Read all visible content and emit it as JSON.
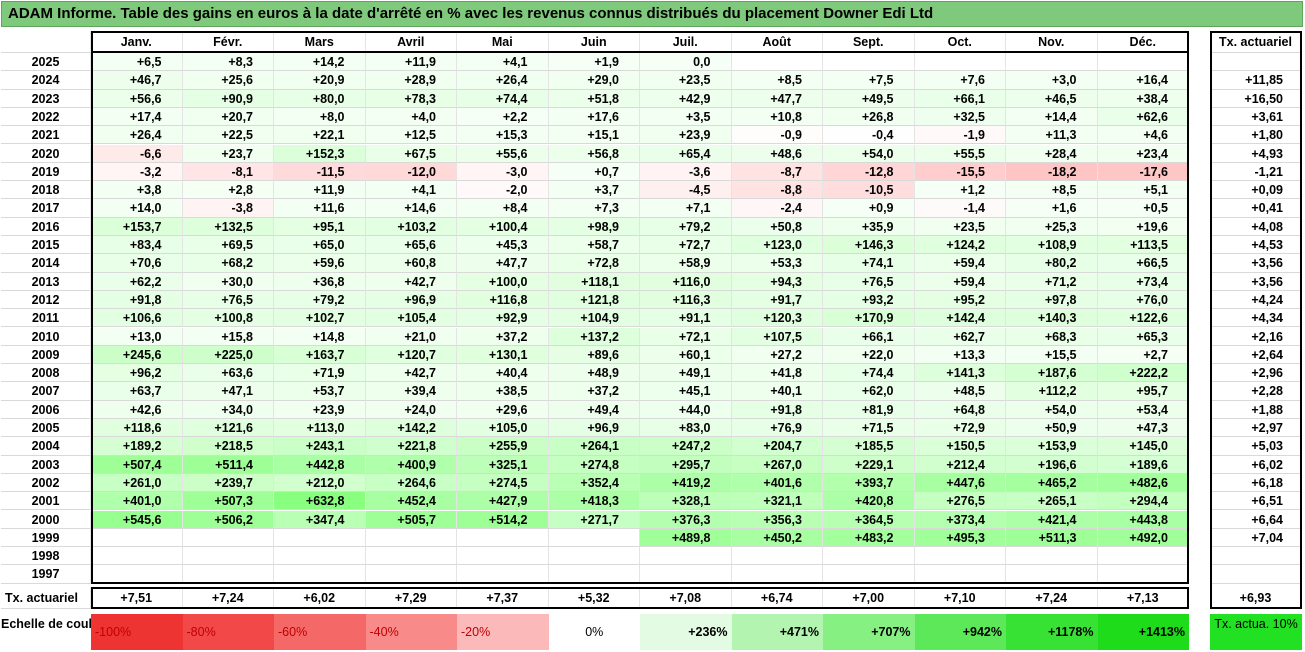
{
  "title": "ADAM Informe. Table des gains en euros à la date d'arrêté en % avec les revenus connus distribués du placement Downer Edi Ltd",
  "months": [
    "Janv.",
    "Févr.",
    "Mars",
    "Avril",
    "Mai",
    "Juin",
    "Juil.",
    "Août",
    "Sept.",
    "Oct.",
    "Nov.",
    "Déc."
  ],
  "tx_header": "Tx. actuariel",
  "rows": [
    {
      "year": "2025",
      "vals": [
        "+6,5",
        "+8,3",
        "+14,2",
        "+11,9",
        "+4,1",
        "+1,9",
        "0,0",
        "",
        "",
        "",
        "",
        ""
      ],
      "tx": ""
    },
    {
      "year": "2024",
      "vals": [
        "+46,7",
        "+25,6",
        "+20,9",
        "+28,9",
        "+26,4",
        "+29,0",
        "+23,5",
        "+8,5",
        "+7,5",
        "+7,6",
        "+3,0",
        "+16,4"
      ],
      "tx": "+11,85"
    },
    {
      "year": "2023",
      "vals": [
        "+56,6",
        "+90,9",
        "+80,0",
        "+78,3",
        "+74,4",
        "+51,8",
        "+42,9",
        "+47,7",
        "+49,5",
        "+66,1",
        "+46,5",
        "+38,4"
      ],
      "tx": "+16,50"
    },
    {
      "year": "2022",
      "vals": [
        "+17,4",
        "+20,7",
        "+8,0",
        "+4,0",
        "+2,2",
        "+17,6",
        "+3,5",
        "+10,8",
        "+26,8",
        "+32,5",
        "+14,4",
        "+62,6"
      ],
      "tx": "+3,61"
    },
    {
      "year": "2021",
      "vals": [
        "+26,4",
        "+22,5",
        "+22,1",
        "+12,5",
        "+15,3",
        "+15,1",
        "+23,9",
        "-0,9",
        "-0,4",
        "-1,9",
        "+11,3",
        "+4,6"
      ],
      "tx": "+1,80"
    },
    {
      "year": "2020",
      "vals": [
        "-6,6",
        "+23,7",
        "+152,3",
        "+67,5",
        "+55,6",
        "+56,8",
        "+65,4",
        "+48,6",
        "+54,0",
        "+55,5",
        "+28,4",
        "+23,4"
      ],
      "tx": "+4,93"
    },
    {
      "year": "2019",
      "vals": [
        "-3,2",
        "-8,1",
        "-11,5",
        "-12,0",
        "-3,0",
        "+0,7",
        "-3,6",
        "-8,7",
        "-12,8",
        "-15,5",
        "-18,2",
        "-17,6"
      ],
      "tx": "-1,21"
    },
    {
      "year": "2018",
      "vals": [
        "+3,8",
        "+2,8",
        "+11,9",
        "+4,1",
        "-2,0",
        "+3,7",
        "-4,5",
        "-8,8",
        "-10,5",
        "+1,2",
        "+8,5",
        "+5,1"
      ],
      "tx": "+0,09"
    },
    {
      "year": "2017",
      "vals": [
        "+14,0",
        "-3,8",
        "+11,6",
        "+14,6",
        "+8,4",
        "+7,3",
        "+7,1",
        "-2,4",
        "+0,9",
        "-1,4",
        "+1,6",
        "+0,5"
      ],
      "tx": "+0,41"
    },
    {
      "year": "2016",
      "vals": [
        "+153,7",
        "+132,5",
        "+95,1",
        "+103,2",
        "+100,4",
        "+98,9",
        "+79,2",
        "+50,8",
        "+35,9",
        "+23,5",
        "+25,3",
        "+19,6"
      ],
      "tx": "+4,08"
    },
    {
      "year": "2015",
      "vals": [
        "+83,4",
        "+69,5",
        "+65,0",
        "+65,6",
        "+45,3",
        "+58,7",
        "+72,7",
        "+123,0",
        "+146,3",
        "+124,2",
        "+108,9",
        "+113,5"
      ],
      "tx": "+4,53"
    },
    {
      "year": "2014",
      "vals": [
        "+70,6",
        "+68,2",
        "+59,6",
        "+60,8",
        "+47,7",
        "+72,8",
        "+58,9",
        "+53,3",
        "+74,1",
        "+59,4",
        "+80,2",
        "+66,5"
      ],
      "tx": "+3,56"
    },
    {
      "year": "2013",
      "vals": [
        "+62,2",
        "+30,0",
        "+36,8",
        "+42,7",
        "+100,0",
        "+118,1",
        "+116,0",
        "+94,3",
        "+76,5",
        "+59,4",
        "+71,2",
        "+73,4"
      ],
      "tx": "+3,56"
    },
    {
      "year": "2012",
      "vals": [
        "+91,8",
        "+76,5",
        "+79,2",
        "+96,9",
        "+116,8",
        "+121,8",
        "+116,3",
        "+91,7",
        "+93,2",
        "+95,2",
        "+97,8",
        "+76,0"
      ],
      "tx": "+4,24"
    },
    {
      "year": "2011",
      "vals": [
        "+106,6",
        "+100,8",
        "+102,7",
        "+105,4",
        "+92,9",
        "+104,9",
        "+91,1",
        "+120,3",
        "+170,9",
        "+142,4",
        "+140,3",
        "+122,6"
      ],
      "tx": "+4,34"
    },
    {
      "year": "2010",
      "vals": [
        "+13,0",
        "+15,8",
        "+14,8",
        "+21,0",
        "+37,2",
        "+137,2",
        "+72,1",
        "+107,5",
        "+66,1",
        "+62,7",
        "+68,3",
        "+65,3"
      ],
      "tx": "+2,16"
    },
    {
      "year": "2009",
      "vals": [
        "+245,6",
        "+225,0",
        "+163,7",
        "+120,7",
        "+130,1",
        "+89,6",
        "+60,1",
        "+27,2",
        "+22,0",
        "+13,3",
        "+15,5",
        "+2,7"
      ],
      "tx": "+2,64"
    },
    {
      "year": "2008",
      "vals": [
        "+96,2",
        "+63,6",
        "+71,9",
        "+42,7",
        "+40,4",
        "+48,9",
        "+49,1",
        "+41,8",
        "+74,4",
        "+141,3",
        "+187,6",
        "+222,2"
      ],
      "tx": "+2,96"
    },
    {
      "year": "2007",
      "vals": [
        "+63,7",
        "+47,1",
        "+53,7",
        "+39,4",
        "+38,5",
        "+37,2",
        "+45,1",
        "+40,1",
        "+62,0",
        "+48,5",
        "+112,2",
        "+95,7"
      ],
      "tx": "+2,28"
    },
    {
      "year": "2006",
      "vals": [
        "+42,6",
        "+34,0",
        "+23,9",
        "+24,0",
        "+29,6",
        "+49,4",
        "+44,0",
        "+91,8",
        "+81,9",
        "+64,8",
        "+54,0",
        "+53,4"
      ],
      "tx": "+1,88"
    },
    {
      "year": "2005",
      "vals": [
        "+118,6",
        "+121,6",
        "+113,0",
        "+142,2",
        "+105,0",
        "+96,9",
        "+83,0",
        "+76,9",
        "+71,5",
        "+72,9",
        "+50,9",
        "+47,3"
      ],
      "tx": "+2,97"
    },
    {
      "year": "2004",
      "vals": [
        "+189,2",
        "+218,5",
        "+243,1",
        "+221,8",
        "+255,9",
        "+264,1",
        "+247,2",
        "+204,7",
        "+185,5",
        "+150,5",
        "+153,9",
        "+145,0"
      ],
      "tx": "+5,03"
    },
    {
      "year": "2003",
      "vals": [
        "+507,4",
        "+511,4",
        "+442,8",
        "+400,9",
        "+325,1",
        "+274,8",
        "+295,7",
        "+267,0",
        "+229,1",
        "+212,4",
        "+196,6",
        "+189,6"
      ],
      "tx": "+6,02"
    },
    {
      "year": "2002",
      "vals": [
        "+261,0",
        "+239,7",
        "+212,0",
        "+264,6",
        "+274,5",
        "+352,4",
        "+419,2",
        "+401,6",
        "+393,7",
        "+447,6",
        "+465,2",
        "+482,6"
      ],
      "tx": "+6,18"
    },
    {
      "year": "2001",
      "vals": [
        "+401,0",
        "+507,3",
        "+632,8",
        "+452,4",
        "+427,9",
        "+418,3",
        "+328,1",
        "+321,1",
        "+420,8",
        "+276,5",
        "+265,1",
        "+294,4"
      ],
      "tx": "+6,51"
    },
    {
      "year": "2000",
      "vals": [
        "+545,6",
        "+506,2",
        "+347,4",
        "+505,7",
        "+514,2",
        "+271,7",
        "+376,3",
        "+356,3",
        "+364,5",
        "+373,4",
        "+421,4",
        "+443,8"
      ],
      "tx": "+6,64"
    },
    {
      "year": "1999",
      "vals": [
        "",
        "",
        "",
        "",
        "",
        "",
        "+489,8",
        "+450,2",
        "+483,2",
        "+495,3",
        "+511,3",
        "+492,0"
      ],
      "tx": "+7,04"
    },
    {
      "year": "1998",
      "vals": [
        "",
        "",
        "",
        "",
        "",
        "",
        "",
        "",
        "",
        "",
        "",
        ""
      ],
      "tx": ""
    },
    {
      "year": "1997",
      "vals": [
        "",
        "",
        "",
        "",
        "",
        "",
        "",
        "",
        "",
        "",
        "",
        ""
      ],
      "tx": ""
    }
  ],
  "tx_row": {
    "label": "Tx. actuariel",
    "vals": [
      "+7,51",
      "+7,24",
      "+6,02",
      "+7,29",
      "+7,37",
      "+5,32",
      "+7,08",
      "+6,74",
      "+7,00",
      "+7,10",
      "+7,24",
      "+7,13"
    ],
    "total": "+6,93"
  },
  "legend": {
    "label": "Echelle de couleur",
    "items": [
      "-100%",
      "-80%",
      "-60%",
      "-40%",
      "-20%",
      "0%",
      "+236%",
      "+471%",
      "+707%",
      "+942%",
      "+1178%",
      "+1413%"
    ],
    "colors": [
      "#ee3333",
      "#f24848",
      "#f56868",
      "#f88a8a",
      "#fbb9b9",
      "#ffffff",
      "#e2fbe2",
      "#b3f5b0",
      "#86f082",
      "#5ce858",
      "#38e234",
      "#1edc1a"
    ],
    "tx_label": "Tx. actua. 10%",
    "tx_color": "#22e022"
  }
}
